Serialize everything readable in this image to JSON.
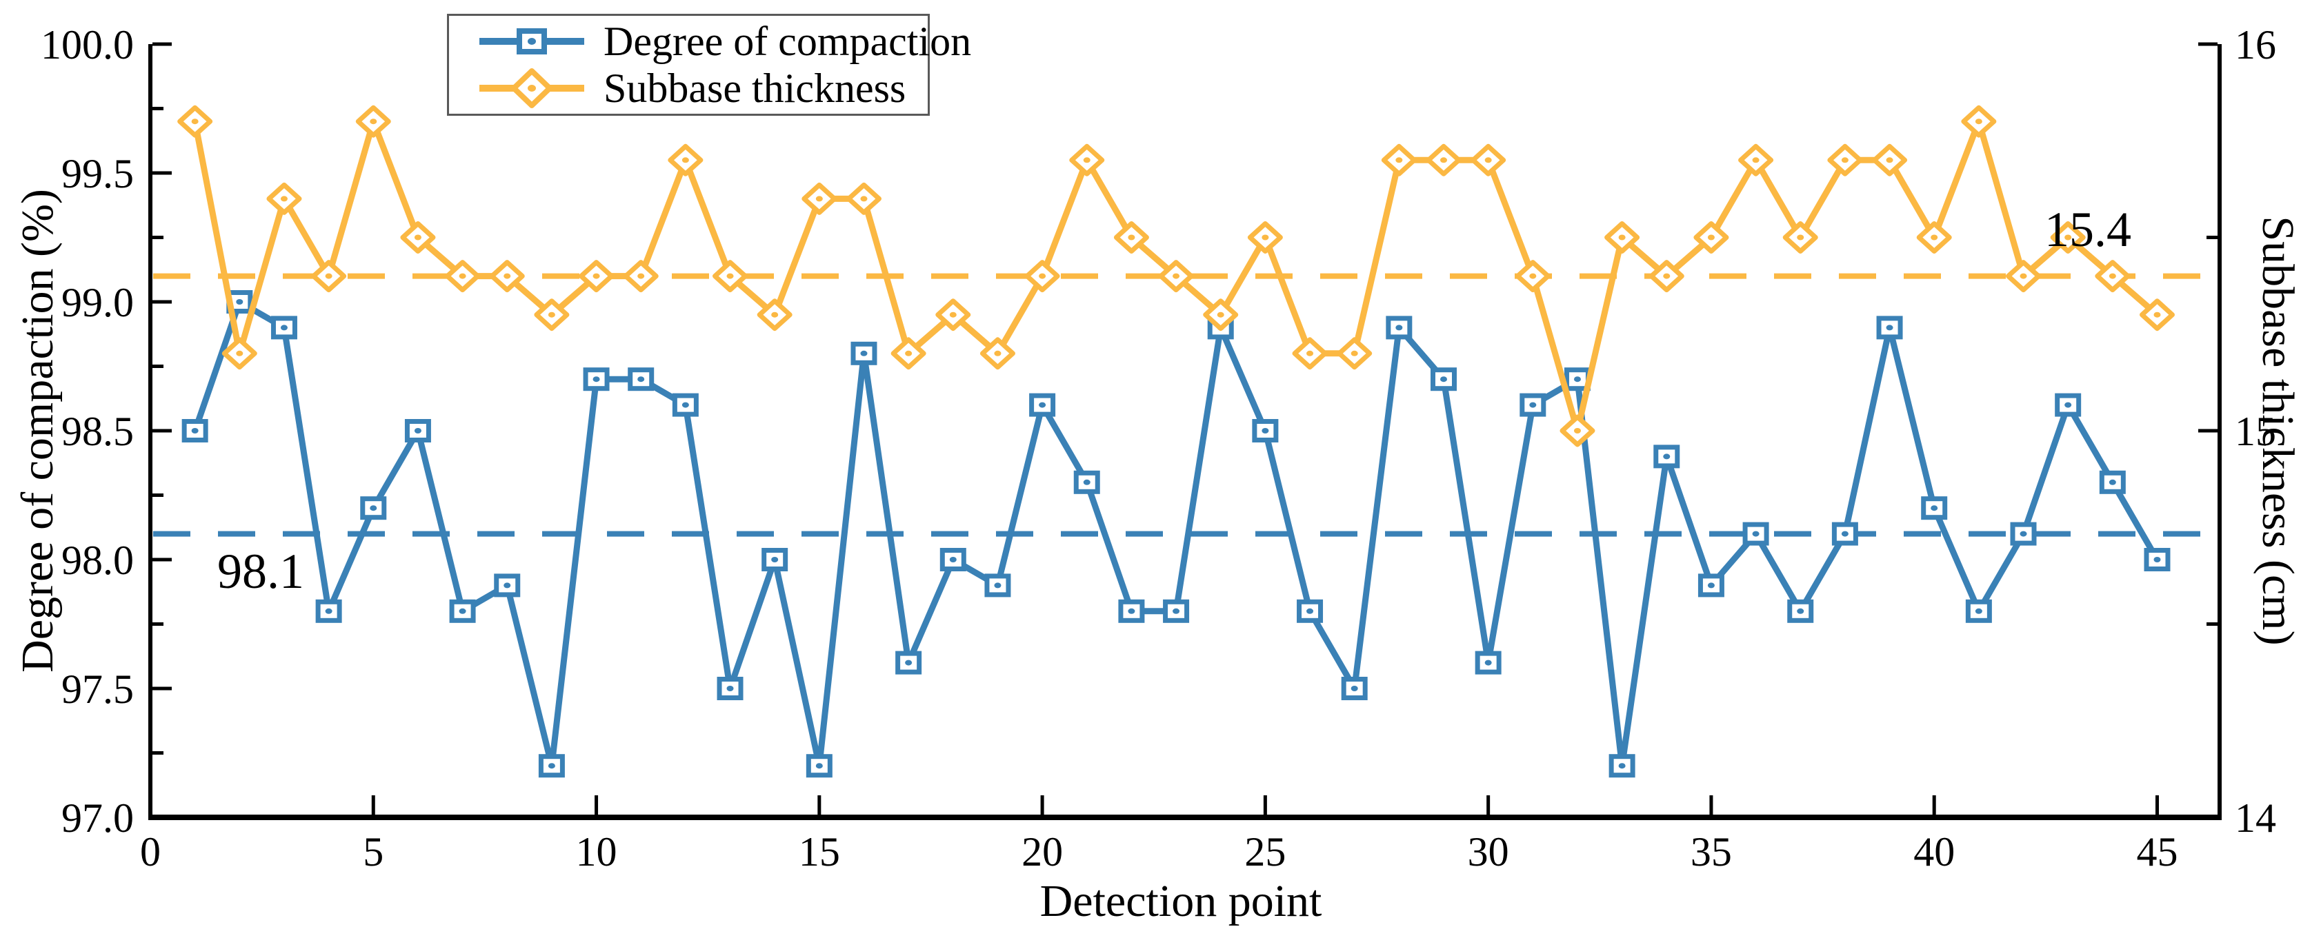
{
  "figure": {
    "annotations": {
      "compaction_mean_label": "98.1",
      "thickness_mean_label": "15.4"
    }
  },
  "chart_data": {
    "type": "line",
    "title": "",
    "x_axis": {
      "label": "Detection point",
      "min": 0,
      "max": 46.4,
      "major_ticks": [
        0,
        5,
        10,
        15,
        20,
        25,
        30,
        35,
        40,
        45
      ]
    },
    "left_axis": {
      "label": "Degree of compaction (%)",
      "min": 97.0,
      "max": 100.0,
      "major_ticks": [
        97.0,
        97.5,
        98.0,
        98.5,
        99.0,
        99.5,
        100.0
      ],
      "minor_step": 0.25,
      "tick_label_decimals": 1
    },
    "right_axis": {
      "label": "Subbase thickness (cm)",
      "min": 14,
      "max": 16,
      "major_ticks": [
        14,
        15,
        16
      ],
      "minor_ticks": [
        14.5,
        15.5
      ],
      "tick_label_decimals": 0
    },
    "x": [
      1,
      2,
      3,
      4,
      5,
      6,
      7,
      8,
      9,
      10,
      11,
      12,
      13,
      14,
      15,
      16,
      17,
      18,
      19,
      20,
      21,
      22,
      23,
      24,
      25,
      26,
      27,
      28,
      29,
      30,
      31,
      32,
      33,
      34,
      35,
      36,
      37,
      38,
      39,
      40,
      41,
      42,
      43,
      44,
      45
    ],
    "series": [
      {
        "name": "Degree of compaction",
        "axis": "left",
        "color": "#3A81B6",
        "marker": "square",
        "values": [
          98.5,
          99.0,
          98.9,
          97.8,
          98.2,
          98.5,
          97.8,
          97.9,
          97.2,
          98.7,
          98.7,
          98.6,
          97.5,
          98.0,
          97.2,
          98.8,
          97.6,
          98.0,
          97.9,
          98.6,
          98.3,
          97.8,
          97.8,
          98.9,
          98.5,
          97.8,
          97.5,
          98.9,
          98.7,
          97.6,
          98.6,
          98.7,
          97.2,
          98.4,
          97.9,
          98.1,
          97.8,
          98.1,
          98.9,
          98.2,
          97.8,
          98.1,
          98.6,
          98.3,
          98.0
        ]
      },
      {
        "name": "Subbase thickness",
        "axis": "right",
        "color": "#FBB843",
        "marker": "diamond",
        "values": [
          15.8,
          15.2,
          15.6,
          15.4,
          15.8,
          15.5,
          15.4,
          15.4,
          15.3,
          15.4,
          15.4,
          15.7,
          15.4,
          15.3,
          15.6,
          15.6,
          15.2,
          15.3,
          15.2,
          15.4,
          15.7,
          15.5,
          15.4,
          15.3,
          15.5,
          15.2,
          15.2,
          15.7,
          15.7,
          15.7,
          15.4,
          15.0,
          15.5,
          15.4,
          15.5,
          15.7,
          15.5,
          15.7,
          15.7,
          15.5,
          15.8,
          15.4,
          15.5,
          15.4,
          15.3
        ]
      }
    ],
    "reference_lines": [
      {
        "axis": "left",
        "value": 98.1,
        "label": "98.1",
        "color": "#3A81B6",
        "style": "dashed"
      },
      {
        "axis": "right",
        "value": 15.4,
        "label": "15.4",
        "color": "#FBB843",
        "style": "dashed"
      }
    ],
    "legend": {
      "position": "top-center",
      "border_color": "#595959"
    },
    "colors": {
      "axis": "#000000",
      "background": "#ffffff"
    },
    "grid": "off"
  }
}
